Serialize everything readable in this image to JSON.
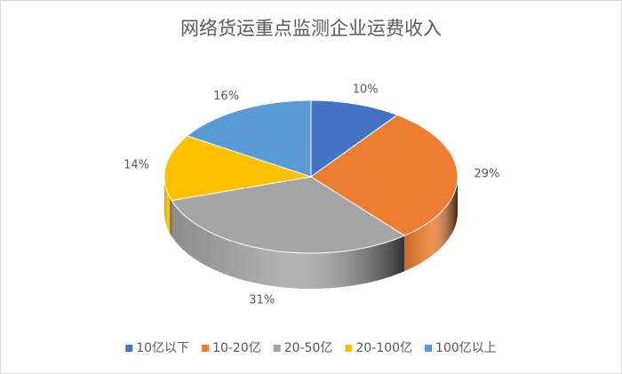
{
  "chart_data": {
    "type": "pie",
    "title": "网络货运重点监测企业运费收入",
    "categories": [
      "10亿以下",
      "10-20亿",
      "20-50亿",
      "20-100亿",
      "100亿以上"
    ],
    "values": [
      10,
      29,
      31,
      14,
      16
    ],
    "value_labels": [
      "10%",
      "29%",
      "31%",
      "14%",
      "16%"
    ],
    "colors": [
      "#4472c4",
      "#ed7d31",
      "#a5a5a5",
      "#ffc000",
      "#5b9bd5"
    ],
    "legend": "bottom"
  }
}
